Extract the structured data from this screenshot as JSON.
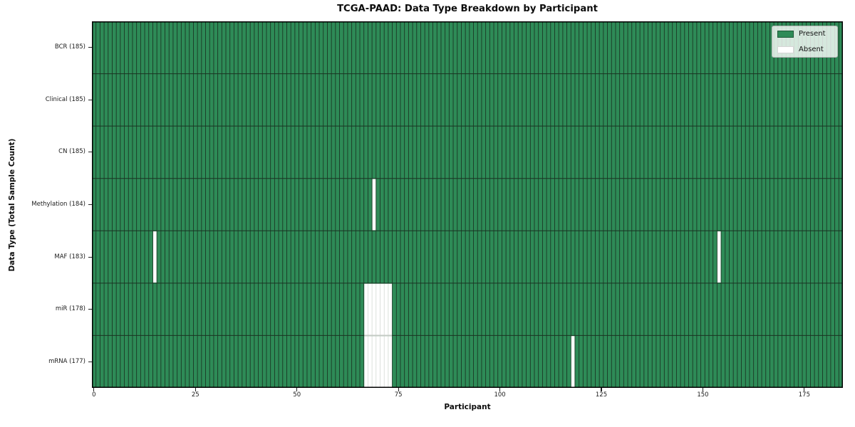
{
  "title": "TCGA-PAAD: Data Type Breakdown by Participant",
  "xlabel": "Participant",
  "ylabel": "Data Type (Total Sample Count)",
  "legend": {
    "present_label": "Present",
    "absent_label": "Absent"
  },
  "colors": {
    "present": "#2e8b57",
    "absent": "#ffffff",
    "cell_edge": "#1a3322",
    "absent_cell_edge": "#cdd4cd",
    "absent_row_divider": "#c3cac3",
    "frame": "#000000",
    "legend_bg": "rgba(255,255,255,0.8)",
    "legend_border": "#b3b3b3",
    "text": "#111111"
  },
  "chart_data": {
    "type": "heatmap",
    "title": "TCGA-PAAD: Data Type Breakdown by Participant",
    "xlabel": "Participant",
    "ylabel": "Data Type (Total Sample Count)",
    "n_participants": 185,
    "x_ticks": [
      0,
      25,
      50,
      75,
      100,
      125,
      150,
      175
    ],
    "legend_entries": [
      "Present",
      "Absent"
    ],
    "legend_position": "upper right",
    "grid": false,
    "rows": [
      {
        "label": "BCR",
        "total": 185,
        "display": "BCR (185)",
        "absent_participants": []
      },
      {
        "label": "Clinical",
        "total": 185,
        "display": "Clinical (185)",
        "absent_participants": []
      },
      {
        "label": "CN",
        "total": 185,
        "display": "CN (185)",
        "absent_participants": []
      },
      {
        "label": "Methylation",
        "total": 184,
        "display": "Methylation (184)",
        "absent_participants": [
          69
        ]
      },
      {
        "label": "MAF",
        "total": 183,
        "display": "MAF (183)",
        "absent_participants": [
          15,
          154
        ]
      },
      {
        "label": "miR",
        "total": 178,
        "display": "miR (178)",
        "absent_participants": [
          67,
          68,
          69,
          70,
          71,
          72,
          73
        ]
      },
      {
        "label": "mRNA",
        "total": 177,
        "display": "mRNA (177)",
        "absent_participants": [
          67,
          68,
          69,
          70,
          71,
          72,
          73,
          118
        ]
      }
    ]
  }
}
